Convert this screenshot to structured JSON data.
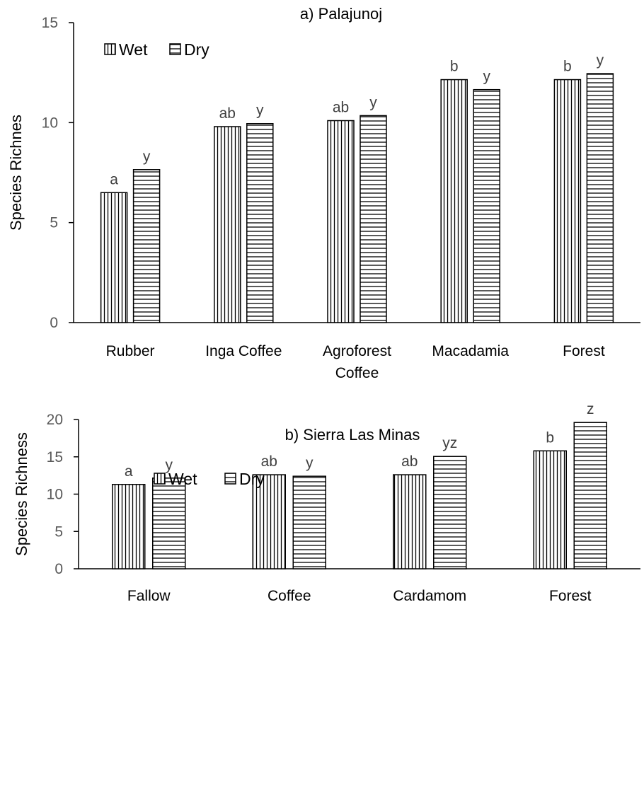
{
  "chart_data": [
    {
      "type": "bar",
      "title": "a) Palajunoj",
      "ylabel": "Species Richnes",
      "xlabel": "",
      "ylim": [
        0,
        15
      ],
      "yticks": [
        0,
        5,
        10,
        15
      ],
      "grid": false,
      "legend_position": "top-left",
      "categories": [
        "Rubber",
        "Inga Coffee",
        "Agroforest Coffee",
        "Macadamia",
        "Forest"
      ],
      "category_lines": [
        [
          "Rubber"
        ],
        [
          "Inga Coffee"
        ],
        [
          "Agroforest",
          "Coffee"
        ],
        [
          "Macadamia"
        ],
        [
          "Forest"
        ]
      ],
      "series": [
        {
          "name": "Wet",
          "pattern": "vertical-lines",
          "values": [
            6.5,
            9.8,
            10.1,
            12.15,
            12.15
          ],
          "labels": [
            "a",
            "ab",
            "ab",
            "b",
            "b"
          ]
        },
        {
          "name": "Dry",
          "pattern": "horizontal-lines",
          "values": [
            7.65,
            9.95,
            10.35,
            11.65,
            12.45
          ],
          "labels": [
            "y",
            "y",
            "y",
            "y",
            "y"
          ]
        }
      ]
    },
    {
      "type": "bar",
      "title": "b) Sierra Las Minas",
      "ylabel": "Species Richness",
      "xlabel": "",
      "ylim": [
        0,
        20
      ],
      "yticks": [
        0,
        5,
        10,
        15,
        20
      ],
      "grid": false,
      "legend_position": "top-left",
      "categories": [
        "Fallow",
        "Coffee",
        "Cardamom",
        "Forest"
      ],
      "category_lines": [
        [
          "Fallow"
        ],
        [
          "Coffee"
        ],
        [
          "Cardamom"
        ],
        [
          "Forest"
        ]
      ],
      "series": [
        {
          "name": "Wet",
          "pattern": "vertical-lines",
          "values": [
            11.3,
            12.6,
            12.6,
            15.8
          ],
          "labels": [
            "a",
            "ab",
            "ab",
            "b"
          ]
        },
        {
          "name": "Dry",
          "pattern": "horizontal-lines",
          "values": [
            12.15,
            12.4,
            15.05,
            19.6
          ],
          "labels": [
            "y",
            "y",
            "yz",
            "z"
          ]
        }
      ]
    }
  ],
  "colors": {
    "axis": "#000000",
    "bar_fill": "#ffffff",
    "bar_stroke": "#000000",
    "tick_text": "#595959",
    "sig_text": "#404040"
  }
}
